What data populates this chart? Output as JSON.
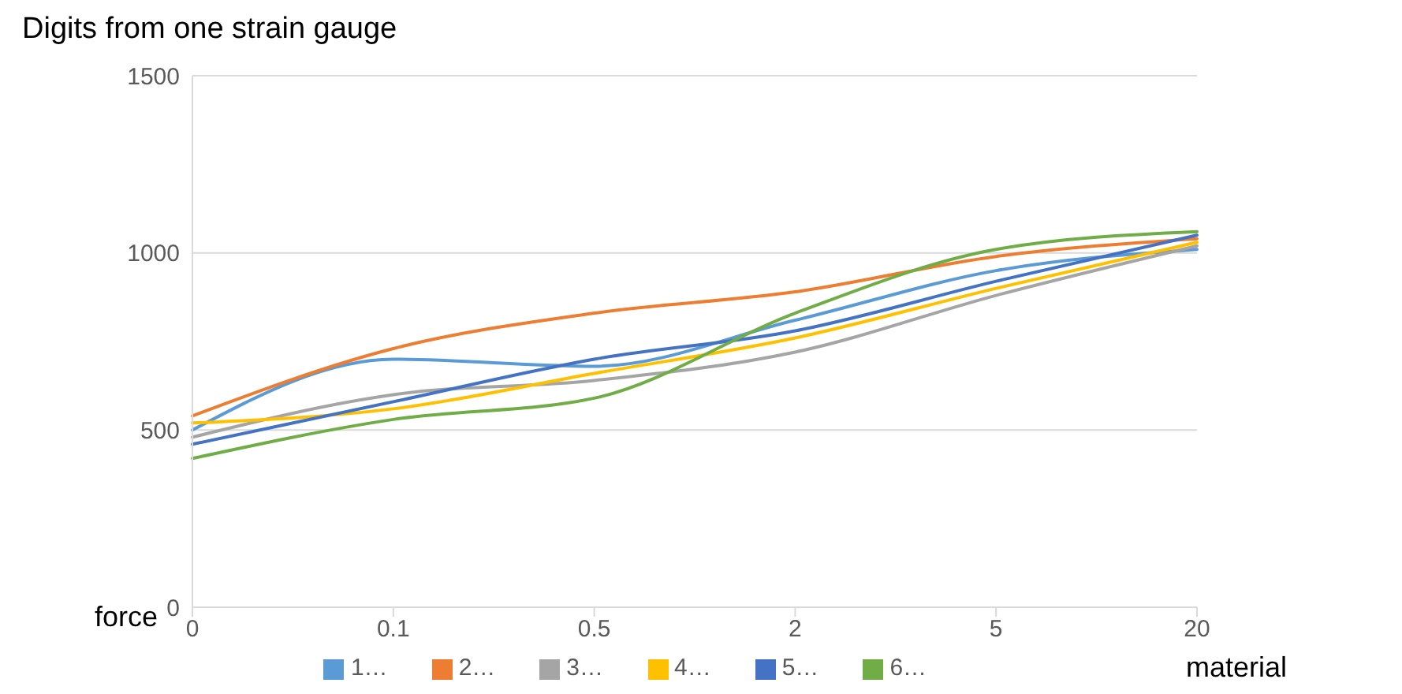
{
  "chart_data": {
    "type": "line",
    "title": "Digits from one strain gauge",
    "xlabel": "force",
    "legend_title": "material",
    "categories": [
      "0",
      "0.1",
      "0.5",
      "2",
      "5",
      "20"
    ],
    "series": [
      {
        "name": "1…",
        "color": "#5b9bd5",
        "values": [
          500,
          700,
          680,
          810,
          950,
          1010
        ]
      },
      {
        "name": "2…",
        "color": "#ed7d31",
        "values": [
          540,
          730,
          830,
          890,
          990,
          1040
        ]
      },
      {
        "name": "3…",
        "color": "#a5a5a5",
        "values": [
          480,
          600,
          640,
          720,
          880,
          1020
        ]
      },
      {
        "name": "4…",
        "color": "#ffc000",
        "values": [
          520,
          560,
          660,
          760,
          900,
          1030
        ]
      },
      {
        "name": "5…",
        "color": "#4472c4",
        "values": [
          460,
          580,
          700,
          780,
          920,
          1050
        ]
      },
      {
        "name": "6…",
        "color": "#70ad47",
        "values": [
          420,
          530,
          590,
          830,
          1010,
          1060
        ]
      }
    ],
    "ylim": [
      0,
      1500
    ],
    "yticks": [
      0,
      500,
      1000,
      1500
    ],
    "grid": "y",
    "legend": "bottom",
    "marker": "none"
  }
}
